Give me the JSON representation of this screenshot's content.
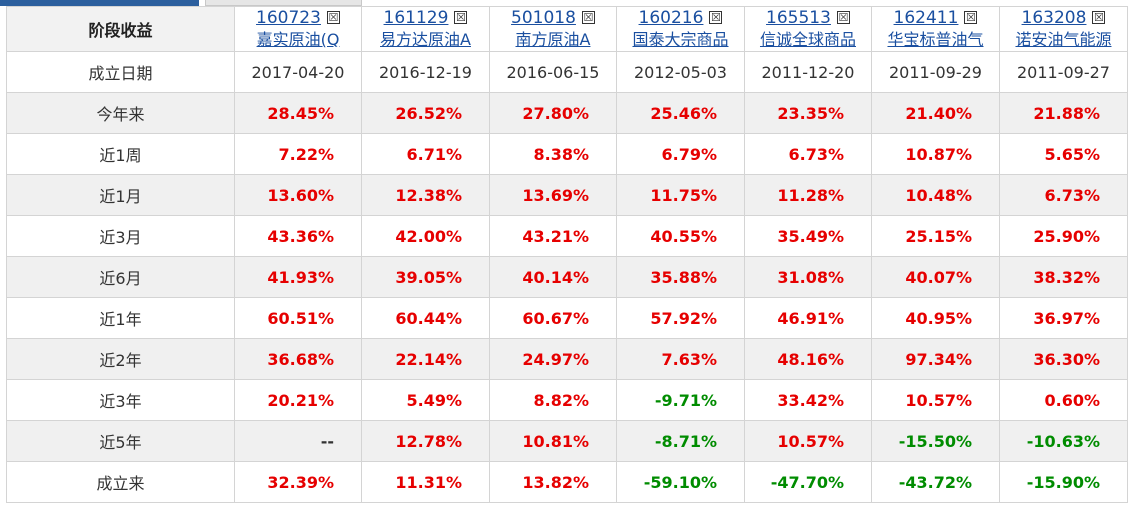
{
  "header": {
    "corner_label": "阶段收益",
    "close_glyph": "☒"
  },
  "funds": [
    {
      "code": "160723",
      "name": "嘉实原油(Q"
    },
    {
      "code": "161129",
      "name": "易方达原油A"
    },
    {
      "code": "501018",
      "name": "南方原油A"
    },
    {
      "code": "160216",
      "name": "国泰大宗商品"
    },
    {
      "code": "165513",
      "name": "信诚全球商品"
    },
    {
      "code": "162411",
      "name": "华宝标普油气"
    },
    {
      "code": "163208",
      "name": "诺安油气能源"
    }
  ],
  "inception": {
    "label": "成立日期",
    "dates": [
      "2017-04-20",
      "2016-12-19",
      "2016-06-15",
      "2012-05-03",
      "2011-12-20",
      "2011-09-29",
      "2011-09-27"
    ]
  },
  "periods": [
    {
      "label": "今年来",
      "values": [
        "28.45%",
        "26.52%",
        "27.80%",
        "25.46%",
        "23.35%",
        "21.40%",
        "21.88%"
      ]
    },
    {
      "label": "近1周",
      "values": [
        "7.22%",
        "6.71%",
        "8.38%",
        "6.79%",
        "6.73%",
        "10.87%",
        "5.65%"
      ]
    },
    {
      "label": "近1月",
      "values": [
        "13.60%",
        "12.38%",
        "13.69%",
        "11.75%",
        "11.28%",
        "10.48%",
        "6.73%"
      ]
    },
    {
      "label": "近3月",
      "values": [
        "43.36%",
        "42.00%",
        "43.21%",
        "40.55%",
        "35.49%",
        "25.15%",
        "25.90%"
      ]
    },
    {
      "label": "近6月",
      "values": [
        "41.93%",
        "39.05%",
        "40.14%",
        "35.88%",
        "31.08%",
        "40.07%",
        "38.32%"
      ]
    },
    {
      "label": "近1年",
      "values": [
        "60.51%",
        "60.44%",
        "60.67%",
        "57.92%",
        "46.91%",
        "40.95%",
        "36.97%"
      ]
    },
    {
      "label": "近2年",
      "values": [
        "36.68%",
        "22.14%",
        "24.97%",
        "7.63%",
        "48.16%",
        "97.34%",
        "36.30%"
      ]
    },
    {
      "label": "近3年",
      "values": [
        "20.21%",
        "5.49%",
        "8.82%",
        "-9.71%",
        "33.42%",
        "10.57%",
        "0.60%"
      ]
    },
    {
      "label": "近5年",
      "values": [
        "--",
        "12.78%",
        "10.81%",
        "-8.71%",
        "10.57%",
        "-15.50%",
        "-10.63%"
      ]
    },
    {
      "label": "成立来",
      "values": [
        "32.39%",
        "11.31%",
        "13.82%",
        "-59.10%",
        "-47.70%",
        "-43.72%",
        "-15.90%"
      ]
    }
  ],
  "colors": {
    "positive": "#e60000",
    "negative": "#008c00",
    "link": "#1a4fa0",
    "alt_row": "#f0f0f0",
    "tab_active": "#2c5f9e"
  }
}
